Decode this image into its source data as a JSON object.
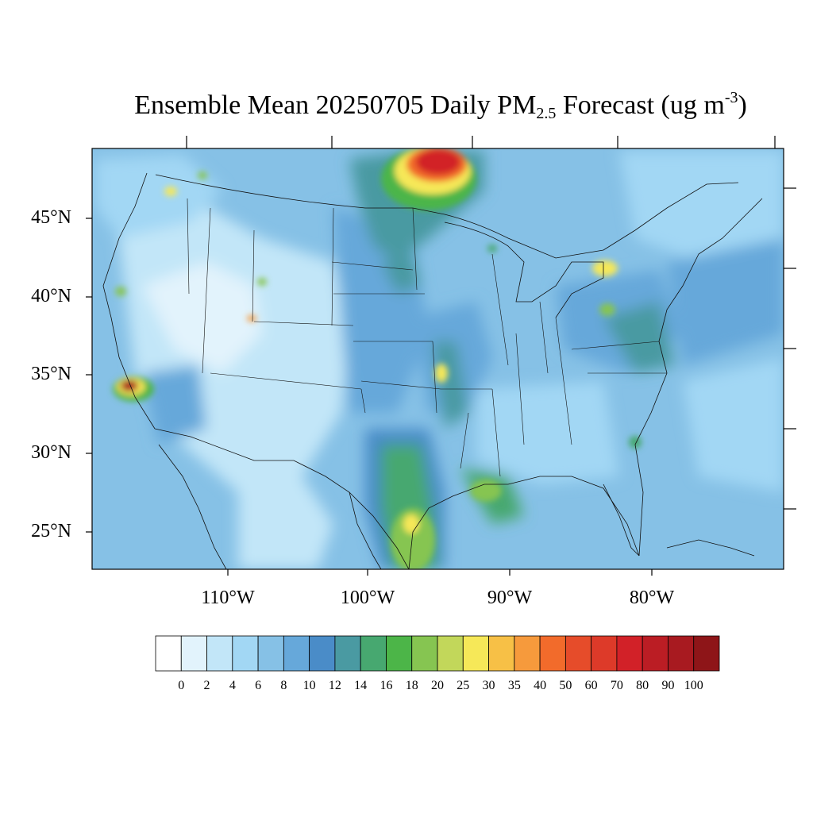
{
  "title": {
    "text_before": "Ensemble Mean 20250705 Daily PM",
    "subscript": "2.5",
    "text_after": " Forecast (ug m",
    "superscript": "-3",
    "text_end": ")"
  },
  "latitude_labels": [
    "45°N",
    "40°N",
    "35°N",
    "30°N",
    "25°N"
  ],
  "longitude_labels": [
    "110°W",
    "100°W",
    "90°W",
    "80°W"
  ],
  "colorbar": {
    "labels": [
      "0",
      "2",
      "4",
      "6",
      "8",
      "10",
      "12",
      "14",
      "16",
      "18",
      "20",
      "25",
      "30",
      "35",
      "40",
      "50",
      "60",
      "70",
      "80",
      "90",
      "100"
    ],
    "colors": [
      "#ffffff",
      "#e2f3fc",
      "#c2e6f8",
      "#a2d7f4",
      "#86c1e6",
      "#66a8da",
      "#4a8cc8",
      "#4a9aa2",
      "#47a870",
      "#4cb548",
      "#86c551",
      "#c2d75a",
      "#f6e858",
      "#f7c046",
      "#f69a3c",
      "#f26b2b",
      "#e64c2a",
      "#dd3a29",
      "#d22128",
      "#bb1d24",
      "#a81a20",
      "#8e1518"
    ]
  },
  "hotspots": [
    {
      "name": "southern-california",
      "level": 100
    },
    {
      "name": "minnesota-canada-border",
      "level": 90
    },
    {
      "name": "south-texas",
      "level": 25
    },
    {
      "name": "lower-mississippi",
      "level": 25
    },
    {
      "name": "lake-erie-ontario",
      "level": 30
    }
  ]
}
